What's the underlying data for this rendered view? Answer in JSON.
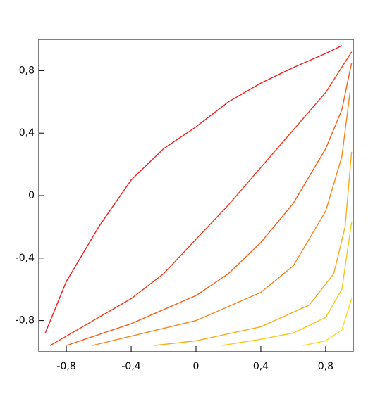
{
  "chart_data": {
    "type": "line",
    "xlim": [
      -0.97,
      0.97
    ],
    "ylim": [
      -1,
      1
    ],
    "xticks": [
      {
        "value": -0.8,
        "label": "-0,8"
      },
      {
        "value": -0.4,
        "label": "-0,4"
      },
      0,
      {
        "value": 0.4,
        "label": "0,4"
      },
      {
        "value": 0.8,
        "label": "0,8"
      }
    ],
    "yticks": [
      {
        "value": -0.8,
        "label": "-0,8"
      },
      {
        "value": -0.4,
        "label": "-0,4"
      },
      0,
      {
        "value": 0.4,
        "label": "0,4"
      },
      {
        "value": 0.8,
        "label": "0,8"
      }
    ],
    "series": [
      {
        "color": "#ee1c1c",
        "x": [
          -0.93,
          -0.8,
          -0.6,
          -0.4,
          -0.2,
          0,
          0.2,
          0.4,
          0.6,
          0.8,
          0.9
        ],
        "values": [
          -0.88,
          -0.55,
          -0.2,
          0.1,
          0.3,
          0.44,
          0.6,
          0.72,
          0.82,
          0.91,
          0.96
        ]
      },
      {
        "color": "#f03a1a",
        "x": [
          -0.9,
          -0.8,
          -0.4,
          -0.2,
          0,
          0.2,
          0.4,
          0.6,
          0.8,
          0.96
        ],
        "values": [
          -0.96,
          -0.9,
          -0.66,
          -0.5,
          -0.28,
          -0.06,
          0.18,
          0.42,
          0.66,
          0.92
        ]
      },
      {
        "color": "#f2601a",
        "x": [
          -0.8,
          -0.4,
          0,
          0.2,
          0.4,
          0.6,
          0.8,
          0.9,
          0.96
        ],
        "values": [
          -0.96,
          -0.82,
          -0.64,
          -0.5,
          -0.3,
          -0.05,
          0.3,
          0.55,
          0.85
        ]
      },
      {
        "color": "#f5861a",
        "x": [
          -0.64,
          -0.4,
          0,
          0.4,
          0.6,
          0.8,
          0.9,
          0.95
        ],
        "values": [
          -0.96,
          -0.9,
          -0.8,
          -0.62,
          -0.45,
          -0.1,
          0.25,
          0.66
        ]
      },
      {
        "color": "#f7ac1a",
        "x": [
          -0.26,
          0,
          0.4,
          0.7,
          0.85,
          0.92,
          0.96
        ],
        "values": [
          -0.96,
          -0.93,
          -0.84,
          -0.7,
          -0.5,
          -0.2,
          0.28
        ]
      },
      {
        "color": "#f9c81a",
        "x": [
          0.16,
          0.4,
          0.6,
          0.8,
          0.9,
          0.96
        ],
        "values": [
          -0.96,
          -0.92,
          -0.88,
          -0.78,
          -0.6,
          -0.17
        ]
      },
      {
        "color": "#fbdc1a",
        "x": [
          0.66,
          0.8,
          0.9,
          0.96
        ],
        "values": [
          -0.96,
          -0.93,
          -0.86,
          -0.66
        ]
      }
    ]
  }
}
